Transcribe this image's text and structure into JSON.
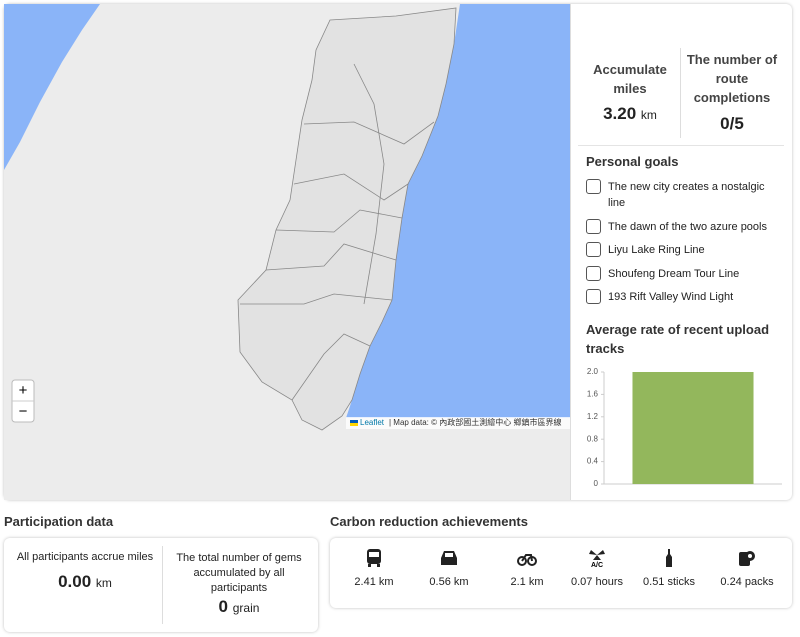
{
  "map": {
    "zoom_in": "+",
    "zoom_out": "−",
    "attribution_link": "Leaflet",
    "attribution_text": "| Map data: © 內政部國土測繪中心 鄉鎮市區界線"
  },
  "stats": {
    "miles_label": "Accumulate miles",
    "miles_value": "3.20",
    "miles_unit": "km",
    "routes_label": "The number of route completions",
    "routes_value": "0/5"
  },
  "goals": {
    "title": "Personal goals",
    "items": [
      "The new city creates a nostalgic line",
      "The dawn of the two azure pools",
      "Liyu Lake Ring Line",
      "Shoufeng Dream Tour Line",
      "193 Rift Valley Wind Light"
    ]
  },
  "chart_data": {
    "type": "bar",
    "title": "Average rate of recent upload tracks",
    "categories": [
      null
    ],
    "values": [
      2
    ],
    "color": "#93b75c",
    "ylim": [
      0,
      2
    ],
    "yticks": [
      0,
      {
        "value": 0.4,
        "label": "0.4"
      },
      {
        "value": 0.8,
        "label": "0.8"
      },
      {
        "value": 1.2,
        "label": "1.2"
      },
      {
        "value": 1.6,
        "label": "1.6"
      },
      {
        "value": 2,
        "label": "2.0"
      }
    ]
  },
  "participation": {
    "title": "Participation data",
    "miles_label": "All participants accrue miles",
    "miles_value": "0.00",
    "miles_unit": "km",
    "gems_label": "The total number of gems accumulated by all participants",
    "gems_value": "0",
    "gems_unit": "grain"
  },
  "carbon": {
    "title": "Carbon reduction achievements",
    "items": [
      "2.41 km",
      "0.56 km",
      "2.1 km",
      "0.07 hours",
      "0.51 sticks",
      "0.24 packs"
    ]
  }
}
